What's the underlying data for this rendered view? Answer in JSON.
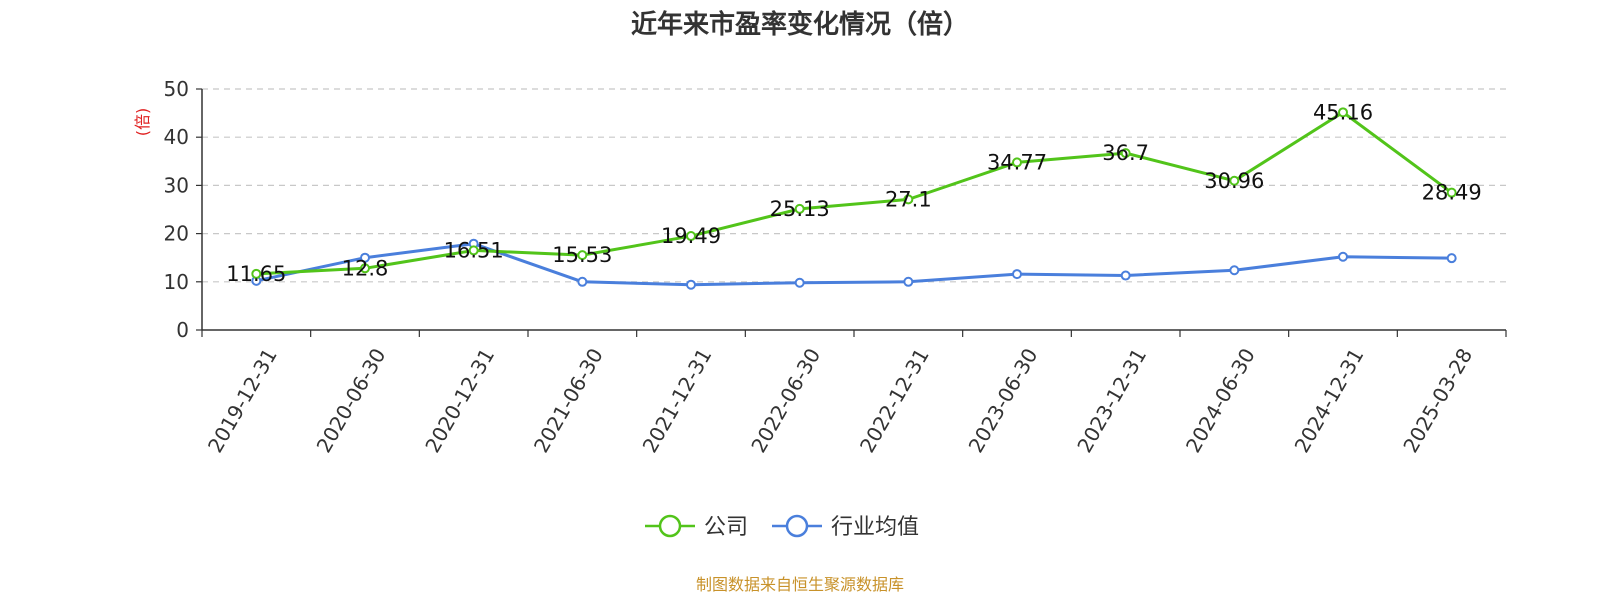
{
  "chart_data": {
    "type": "line",
    "title": "近年来市盈率变化情况（倍）",
    "ylabel": "(倍)",
    "ylim": [
      0,
      50
    ],
    "yticks": [
      0,
      10,
      20,
      30,
      40,
      50
    ],
    "grid": true,
    "categories": [
      "2019-12-31",
      "2020-06-30",
      "2020-12-31",
      "2021-06-30",
      "2021-12-31",
      "2022-06-30",
      "2022-12-31",
      "2023-06-30",
      "2023-12-31",
      "2024-06-30",
      "2024-12-31",
      "2025-03-28"
    ],
    "series": [
      {
        "name": "公司",
        "color": "#52c41a",
        "values": [
          11.65,
          12.8,
          16.51,
          15.53,
          19.49,
          25.13,
          27.1,
          34.77,
          36.7,
          30.96,
          45.16,
          28.49
        ],
        "labels": [
          "11.65",
          "12.8",
          "16.51",
          "15.53",
          "19.49",
          "25.13",
          "27.1",
          "34.77",
          "36.7",
          "30.96",
          "45.16",
          "28.49"
        ]
      },
      {
        "name": "行业均值",
        "color": "#4a7fdc",
        "values": [
          10.2,
          15.0,
          17.9,
          10.0,
          9.4,
          9.8,
          10.0,
          11.6,
          11.3,
          12.4,
          15.2,
          14.9
        ]
      }
    ],
    "legend_position": "bottom-center"
  },
  "unit_color": "#e02020",
  "source": {
    "text": "制图数据来自恒生聚源数据库",
    "color": "#c8922a"
  }
}
